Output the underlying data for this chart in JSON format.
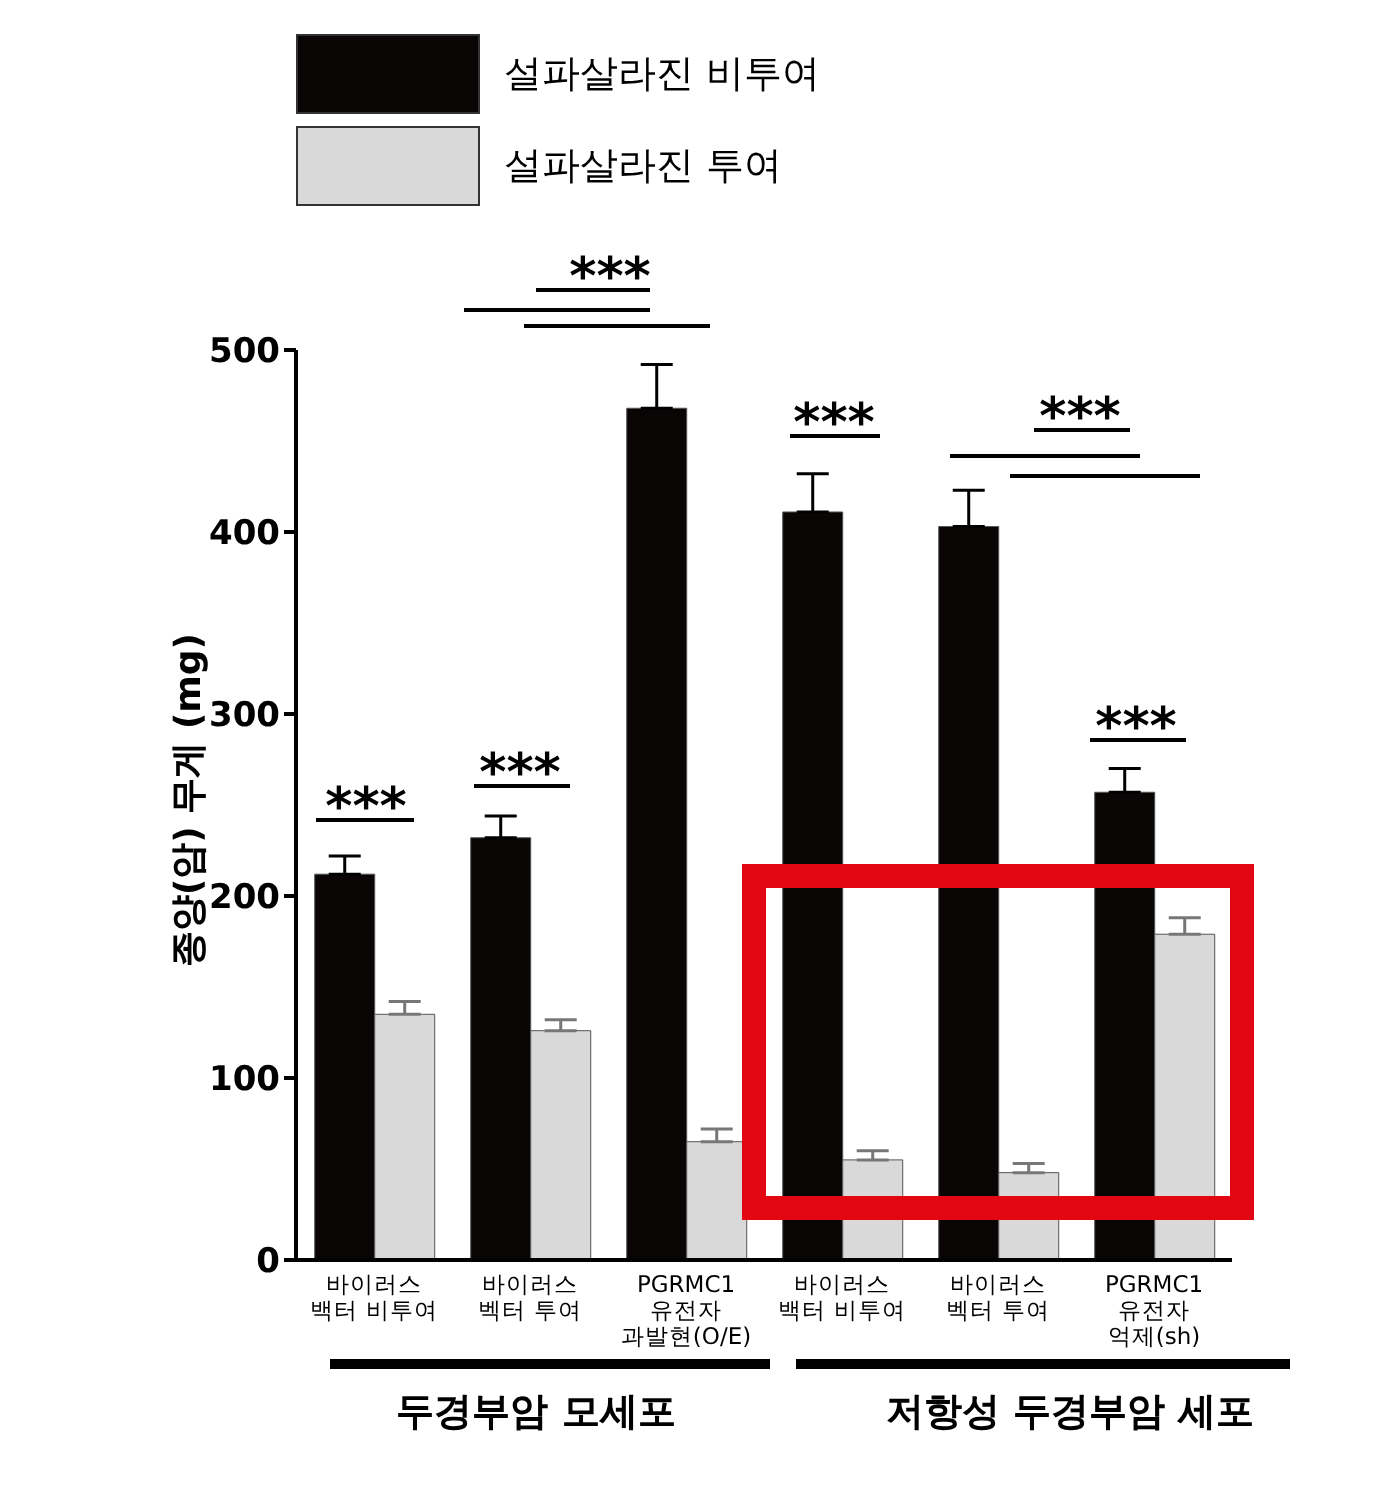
{
  "chart_data": {
    "type": "bar",
    "ylabel": "종양(암) 무게 (mg)",
    "categories": [
      "바이러스\n백터 비투여",
      "바이러스\n벡터 투여",
      "PGRMC1\n유전자\n과발현(O/E)",
      "바이러스\n백터 비투여",
      "바이러스\n벡터 투여",
      "PGRMC1\n유전자\n억제(sh)"
    ],
    "series": [
      {
        "name": "설파살라진 비투여",
        "color": "#0a0505",
        "values": [
          212,
          232,
          468,
          411,
          403,
          257
        ],
        "errors": [
          [
            212,
            222
          ],
          [
            232,
            244
          ],
          [
            468,
            492
          ],
          [
            411,
            432
          ],
          [
            403,
            423
          ],
          [
            257,
            270
          ]
        ]
      },
      {
        "name": "설파살라진 투여",
        "color": "#d9d9d9",
        "values": [
          135,
          126,
          65,
          55,
          48,
          179
        ],
        "errors": [
          [
            135,
            142
          ],
          [
            126,
            132
          ],
          [
            65,
            72
          ],
          [
            55,
            60
          ],
          [
            48,
            53
          ],
          [
            179,
            188
          ]
        ]
      }
    ],
    "ylim": [
      0,
      500
    ],
    "yticks": [
      0,
      100,
      200,
      300,
      400,
      500
    ],
    "legend": "top left",
    "annotations": [
      "***",
      "***",
      "***",
      "***",
      "***",
      "***",
      "두경부암 모세포",
      "저항성 두경부암 세포"
    ]
  }
}
